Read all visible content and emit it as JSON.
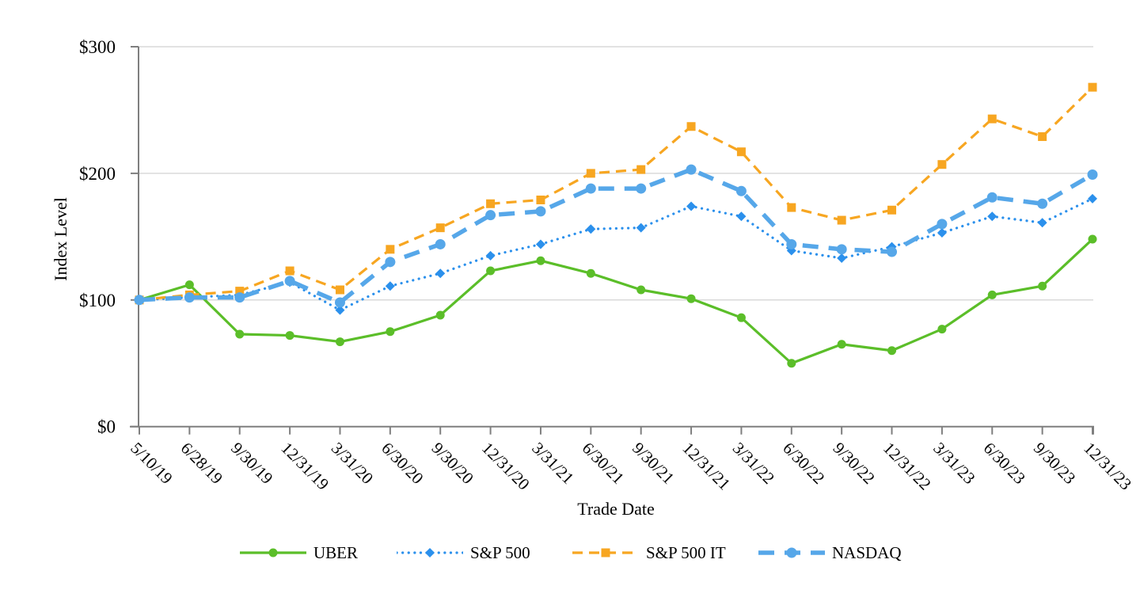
{
  "chart_data": {
    "type": "line",
    "title": "",
    "xlabel": "Trade Date",
    "ylabel": "Index Level",
    "ylim": [
      0,
      300
    ],
    "grid": "horizontal",
    "legend_position": "bottom",
    "yticks": [
      {
        "value": 0,
        "label": "$0"
      },
      {
        "value": 100,
        "label": "$100"
      },
      {
        "value": 200,
        "label": "$200"
      },
      {
        "value": 300,
        "label": "$300"
      }
    ],
    "categories": [
      "5/10/19",
      "6/28/19",
      "9/30/19",
      "12/31/19",
      "3/31/20",
      "6/30/20",
      "9/30/20",
      "12/31/20",
      "3/31/21",
      "6/30/21",
      "9/30/21",
      "12/31/21",
      "3/31/22",
      "6/30/22",
      "9/30/22",
      "12/31/22",
      "3/31/23",
      "6/30/23",
      "9/30/23",
      "12/31/23"
    ],
    "series": [
      {
        "name": "UBER",
        "color": "#5BBE29",
        "line_style": "solid",
        "marker": "circle",
        "values": [
          100,
          112,
          73,
          72,
          67,
          75,
          88,
          123,
          131,
          121,
          108,
          101,
          86,
          50,
          65,
          60,
          77,
          104,
          111,
          148
        ]
      },
      {
        "name": "S&P 500",
        "color": "#2B90EC",
        "line_style": "dotted",
        "marker": "diamond",
        "values": [
          100,
          102,
          104,
          114,
          92,
          111,
          121,
          135,
          144,
          156,
          157,
          174,
          166,
          139,
          133,
          142,
          153,
          166,
          161,
          180
        ]
      },
      {
        "name": "S&P 500 IT",
        "color": "#F7A621",
        "line_style": "dashed",
        "marker": "square",
        "values": [
          100,
          104,
          107,
          123,
          108,
          140,
          157,
          176,
          179,
          200,
          203,
          237,
          217,
          173,
          163,
          171,
          207,
          243,
          229,
          268
        ]
      },
      {
        "name": "NASDAQ",
        "color": "#56A7E9",
        "line_style": "long-dash-thick",
        "marker": "circle",
        "values": [
          100,
          102,
          102,
          115,
          98,
          130,
          144,
          167,
          170,
          188,
          188,
          203,
          186,
          144,
          140,
          138,
          160,
          181,
          176,
          199
        ]
      }
    ],
    "colors": {
      "gridline": "#D9D9D9",
      "axis": "#7F7F7F",
      "text": "#000000",
      "background": "#FFFFFF"
    }
  }
}
